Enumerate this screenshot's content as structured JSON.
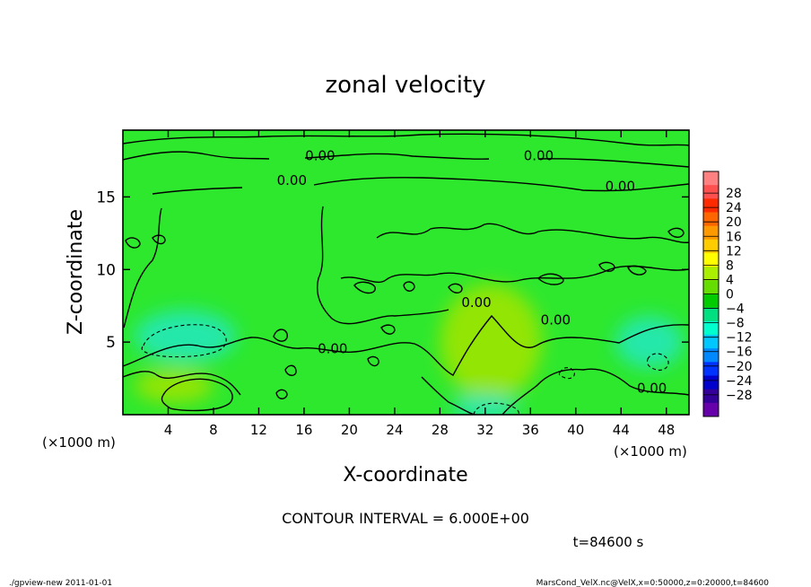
{
  "chart_data": {
    "type": "heatmap",
    "title": "zonal velocity",
    "xlabel": "X-coordinate",
    "ylabel": "Z-coordinate",
    "x_unit_left": "(×1000 m)",
    "x_unit_right": "(×1000 m)",
    "xlim": [
      0,
      50
    ],
    "ylim": [
      0,
      19.6
    ],
    "x_ticks": [
      "4",
      "8",
      "12",
      "16",
      "20",
      "24",
      "28",
      "32",
      "36",
      "40",
      "44",
      "48"
    ],
    "y_ticks": [
      "5",
      "10",
      "15"
    ],
    "x_tick_values": [
      4,
      8,
      12,
      16,
      20,
      24,
      28,
      32,
      36,
      40,
      44,
      48
    ],
    "y_tick_values": [
      5,
      10,
      15
    ],
    "colorbar": {
      "labels": [
        "28",
        "24",
        "20",
        "16",
        "12",
        "8",
        "4",
        "0",
        "−4",
        "−8",
        "−12",
        "−16",
        "−20",
        "−24",
        "−28"
      ],
      "colors": [
        "#ff8080",
        "#ff5050",
        "#ff2a00",
        "#ff6600",
        "#ff9900",
        "#ffcc00",
        "#ffff00",
        "#aaee00",
        "#66dd00",
        "#00cc00",
        "#00e080",
        "#00ffcc",
        "#00c8ff",
        "#0088ff",
        "#0033ff",
        "#0000cc",
        "#330099",
        "#6600aa"
      ]
    },
    "contour_labels": [
      {
        "text": "0.00",
        "x": 16.1,
        "z": 17.9
      },
      {
        "text": "0.00",
        "x": 35.4,
        "z": 17.9
      },
      {
        "text": "0.00",
        "x": 13.6,
        "z": 16.2
      },
      {
        "text": "0.00",
        "x": 42.6,
        "z": 15.8
      },
      {
        "text": "0.00",
        "x": 29.9,
        "z": 7.8
      },
      {
        "text": "0.00",
        "x": 36.9,
        "z": 6.6
      },
      {
        "text": "0.00",
        "x": 17.2,
        "z": 4.6
      },
      {
        "text": "0.00",
        "x": 45.4,
        "z": 1.9
      }
    ],
    "regions": [
      {
        "kind": "positive",
        "x": 4.5,
        "z": 2.0,
        "rx": 3.5,
        "rz": 1.2
      },
      {
        "kind": "positive",
        "x": 32.5,
        "z": 5.0,
        "rx": 4.5,
        "rz": 4.0
      },
      {
        "kind": "negative",
        "x": 5.5,
        "z": 5.4,
        "rx": 4.5,
        "rz": 1.8
      },
      {
        "kind": "negative",
        "x": 32.0,
        "z": 0.5,
        "rx": 3.0,
        "rz": 0.9
      },
      {
        "kind": "negative",
        "x": 46.5,
        "z": 5.0,
        "rx": 3.0,
        "rz": 1.8
      }
    ],
    "annotation": "CONTOUR INTERVAL = 6.000E+00",
    "time_label": "t=84600 s"
  },
  "footer": {
    "left": "./gpview-new   2011-01-01",
    "right": "MarsCond_VelX.nc@VelX,x=0:50000,z=0:20000,t=84600"
  }
}
